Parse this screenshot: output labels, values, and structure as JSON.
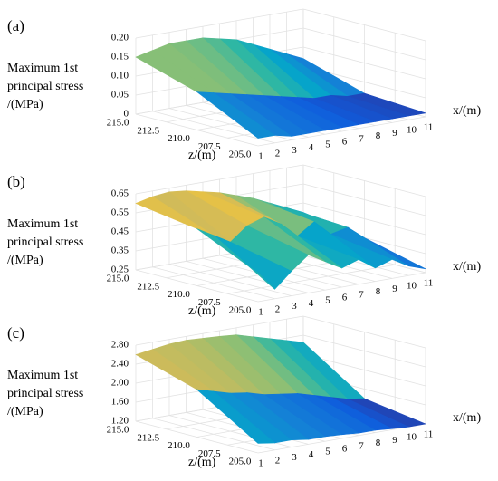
{
  "chart_data": [
    {
      "type": "surface",
      "panel_label": "(a)",
      "value_axis_label": [
        "Maximum 1st",
        "principal stress",
        "/(MPa)"
      ],
      "x_label": "x/(m)",
      "y_label": "z/(m)",
      "x": [
        1,
        2,
        3,
        4,
        5,
        6,
        7,
        8,
        9,
        10,
        11
      ],
      "y": [
        215,
        210,
        205
      ],
      "values": [
        [
          0.15,
          0.16,
          0.17,
          0.17,
          0.17,
          0.16,
          0.15,
          0.13,
          0.11,
          0.09,
          0.07
        ],
        [
          0.1,
          0.09,
          0.08,
          0.07,
          0.06,
          0.05,
          0.04,
          0.03,
          0.03,
          0.02,
          0.02
        ],
        [
          0.02,
          0.02,
          0.01,
          0.01,
          0.01,
          0.01,
          0.01,
          0.01,
          0.01,
          0.01,
          0.01
        ]
      ],
      "xlim": [
        1,
        11
      ],
      "xticks": [
        1,
        2,
        3,
        4,
        5,
        6,
        7,
        8,
        9,
        10,
        11
      ],
      "ylim": [
        215,
        205
      ],
      "yticks": [
        {
          "value": 215,
          "label": "215.0"
        },
        {
          "value": 212.5,
          "label": "212.5"
        },
        {
          "value": 210,
          "label": "210.0"
        },
        {
          "value": 207.5,
          "label": "207.5"
        },
        {
          "value": 205,
          "label": "205.0"
        }
      ],
      "zlim": [
        0,
        0.2
      ],
      "zticks": [
        0,
        0.05,
        {
          "value": 0.1,
          "label": "0.10"
        },
        0.15,
        {
          "value": 0.2,
          "label": "0.20"
        }
      ],
      "colormap": [
        "#352a87",
        "#0f5cdd",
        "#1481d6",
        "#06a4ca",
        "#2eb7a4",
        "#87bf77",
        "#d1bb59",
        "#fec832",
        "#f9fb0e"
      ],
      "grid": true
    },
    {
      "type": "surface",
      "panel_label": "(b)",
      "value_axis_label": [
        "Maximum 1st",
        "principal stress",
        "/(MPa)"
      ],
      "x_label": "x/(m)",
      "y_label": "z/(m)",
      "x": [
        1,
        2,
        3,
        4,
        5,
        6,
        7,
        8,
        9,
        10,
        11
      ],
      "y": [
        215,
        210,
        205
      ],
      "values": [
        [
          0.6,
          0.62,
          0.63,
          0.62,
          0.6,
          0.58,
          0.55,
          0.52,
          0.48,
          0.44,
          0.4
        ],
        [
          0.55,
          0.5,
          0.45,
          0.52,
          0.55,
          0.5,
          0.42,
          0.48,
          0.4,
          0.42,
          0.35
        ],
        [
          0.4,
          0.3,
          0.38,
          0.45,
          0.4,
          0.35,
          0.38,
          0.32,
          0.35,
          0.3,
          0.27
        ]
      ],
      "xlim": [
        1,
        11
      ],
      "xticks": [
        1,
        2,
        3,
        4,
        5,
        6,
        7,
        8,
        9,
        10,
        11
      ],
      "ylim": [
        215,
        205
      ],
      "yticks": [
        {
          "value": 215,
          "label": "215.0"
        },
        {
          "value": 212.5,
          "label": "212.5"
        },
        {
          "value": 210,
          "label": "210.0"
        },
        {
          "value": 207.5,
          "label": "207.5"
        },
        {
          "value": 205,
          "label": "205.0"
        }
      ],
      "zlim": [
        0.25,
        0.65
      ],
      "zticks": [
        0.25,
        0.35,
        0.45,
        0.55,
        0.65
      ],
      "colormap": [
        "#352a87",
        "#0f5cdd",
        "#1481d6",
        "#06a4ca",
        "#2eb7a4",
        "#87bf77",
        "#d1bb59",
        "#fec832",
        "#f9fb0e"
      ],
      "grid": true
    },
    {
      "type": "surface",
      "panel_label": "(c)",
      "value_axis_label": [
        "Maximum 1st",
        "principal stress",
        "/(MPa)"
      ],
      "x_label": "x/(m)",
      "y_label": "z/(m)",
      "x": [
        1,
        2,
        3,
        4,
        5,
        6,
        7,
        8,
        9,
        10,
        11
      ],
      "y": [
        215,
        210,
        205
      ],
      "values": [
        [
          2.6,
          2.65,
          2.7,
          2.72,
          2.7,
          2.68,
          2.65,
          2.55,
          2.45,
          2.35,
          2.25
        ],
        [
          2.2,
          2.1,
          2.0,
          1.95,
          1.85,
          1.8,
          1.75,
          1.65,
          1.55,
          1.45,
          1.4
        ],
        [
          1.4,
          1.35,
          1.35,
          1.3,
          1.3,
          1.28,
          1.25,
          1.25,
          1.22,
          1.2,
          1.2
        ]
      ],
      "xlim": [
        1,
        11
      ],
      "xticks": [
        1,
        2,
        3,
        4,
        5,
        6,
        7,
        8,
        9,
        10,
        11
      ],
      "ylim": [
        215,
        205
      ],
      "yticks": [
        {
          "value": 215,
          "label": "215.0"
        },
        {
          "value": 212.5,
          "label": "212.5"
        },
        {
          "value": 210,
          "label": "210.0"
        },
        {
          "value": 207.5,
          "label": "207.5"
        },
        {
          "value": 205,
          "label": "205.0"
        }
      ],
      "zlim": [
        1.2,
        2.8
      ],
      "zticks": [
        {
          "value": 1.2,
          "label": "1.20"
        },
        {
          "value": 1.6,
          "label": "1.60"
        },
        {
          "value": 2,
          "label": "2.00"
        },
        {
          "value": 2.4,
          "label": "2.40"
        },
        {
          "value": 2.8,
          "label": "2.80"
        }
      ],
      "colormap": [
        "#352a87",
        "#0f5cdd",
        "#1481d6",
        "#06a4ca",
        "#2eb7a4",
        "#87bf77",
        "#d1bb59",
        "#fec832",
        "#f9fb0e"
      ],
      "grid": true
    }
  ]
}
